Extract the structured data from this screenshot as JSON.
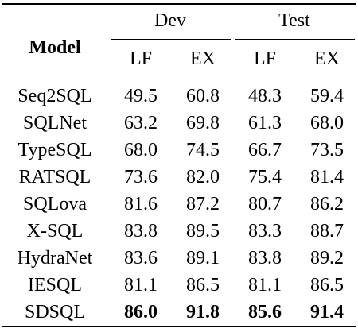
{
  "table": {
    "model_header": "Model",
    "groups": [
      "Dev",
      "Test"
    ],
    "subheaders": [
      "LF",
      "EX",
      "LF",
      "EX"
    ],
    "rows": [
      {
        "model": "Seq2SQL",
        "values": [
          "49.5",
          "60.8",
          "48.3",
          "59.4"
        ],
        "bold": false
      },
      {
        "model": "SQLNet",
        "values": [
          "63.2",
          "69.8",
          "61.3",
          "68.0"
        ],
        "bold": false
      },
      {
        "model": "TypeSQL",
        "values": [
          "68.0",
          "74.5",
          "66.7",
          "73.5"
        ],
        "bold": false
      },
      {
        "model": "RATSQL",
        "values": [
          "73.6",
          "82.0",
          "75.4",
          "81.4"
        ],
        "bold": false
      },
      {
        "model": "SQLova",
        "values": [
          "81.6",
          "87.2",
          "80.7",
          "86.2"
        ],
        "bold": false
      },
      {
        "model": "X-SQL",
        "values": [
          "83.8",
          "89.5",
          "83.3",
          "88.7"
        ],
        "bold": false
      },
      {
        "model": "HydraNet",
        "values": [
          "83.6",
          "89.1",
          "83.8",
          "89.2"
        ],
        "bold": false
      },
      {
        "model": "IESQL",
        "values": [
          "81.1",
          "86.5",
          "81.1",
          "86.5"
        ],
        "bold": false
      },
      {
        "model": "SDSQL",
        "values": [
          "86.0",
          "91.8",
          "85.6",
          "91.4"
        ],
        "bold": true
      }
    ]
  }
}
